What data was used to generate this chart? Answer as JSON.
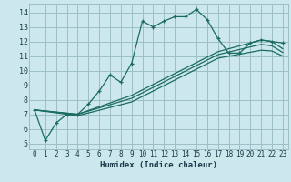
{
  "xlabel": "Humidex (Indice chaleur)",
  "bg_color": "#cce8ec",
  "grid_color": "#9bbfc4",
  "line_color": "#1a6b60",
  "xlim": [
    -0.5,
    23.5
  ],
  "ylim": [
    4.6,
    14.6
  ],
  "xticks": [
    0,
    1,
    2,
    3,
    4,
    5,
    6,
    7,
    8,
    9,
    10,
    11,
    12,
    13,
    14,
    15,
    16,
    17,
    18,
    19,
    20,
    21,
    22,
    23
  ],
  "yticks": [
    5,
    6,
    7,
    8,
    9,
    10,
    11,
    12,
    13,
    14
  ],
  "line1_x": [
    0,
    1,
    2,
    3,
    4,
    5,
    6,
    7,
    8,
    9,
    10,
    11,
    12,
    13,
    14,
    15,
    16,
    17,
    18,
    19,
    20,
    21,
    22,
    23
  ],
  "line1_y": [
    7.3,
    5.2,
    6.4,
    7.0,
    7.0,
    7.7,
    8.6,
    9.7,
    9.2,
    10.5,
    13.4,
    13.0,
    13.4,
    13.7,
    13.7,
    14.2,
    13.5,
    12.2,
    11.2,
    11.2,
    11.9,
    12.1,
    12.0,
    11.9
  ],
  "line2_x": [
    0,
    4,
    9,
    17,
    21,
    22,
    23
  ],
  "line2_y": [
    7.3,
    7.0,
    8.3,
    11.3,
    12.1,
    12.0,
    11.5
  ],
  "line3_x": [
    0,
    4,
    9,
    17,
    21,
    22,
    23
  ],
  "line3_y": [
    7.3,
    7.0,
    8.1,
    11.1,
    11.8,
    11.7,
    11.25
  ],
  "line4_x": [
    0,
    4,
    9,
    17,
    21,
    22,
    23
  ],
  "line4_y": [
    7.3,
    6.9,
    7.85,
    10.85,
    11.4,
    11.35,
    11.0
  ]
}
